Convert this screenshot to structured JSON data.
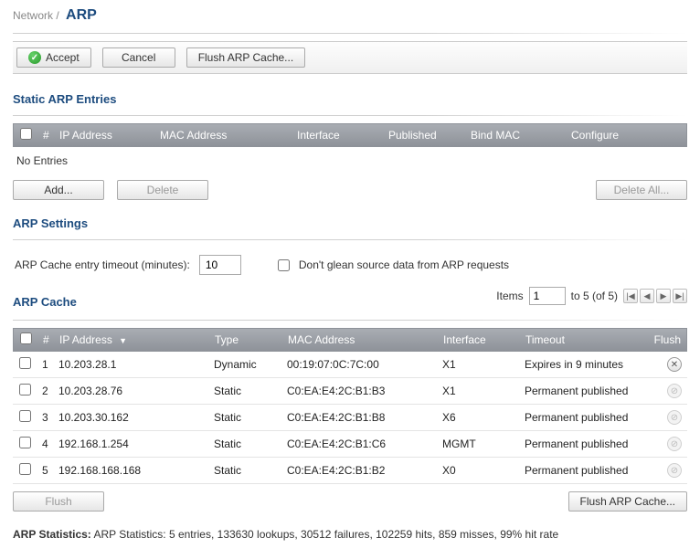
{
  "breadcrumb": {
    "parent": "Network",
    "separator": "/",
    "current": "ARP"
  },
  "action_bar": {
    "accept": "Accept",
    "cancel": "Cancel",
    "flush": "Flush ARP Cache..."
  },
  "static_entries": {
    "heading": "Static ARP Entries",
    "columns": {
      "num": "#",
      "ip": "IP Address",
      "mac": "MAC Address",
      "iface": "Interface",
      "published": "Published",
      "bind": "Bind MAC",
      "configure": "Configure"
    },
    "empty": "No Entries",
    "buttons": {
      "add": "Add...",
      "delete": "Delete",
      "delete_all": "Delete All..."
    }
  },
  "settings": {
    "heading": "ARP Settings",
    "timeout_label": "ARP Cache entry timeout (minutes):",
    "timeout_value": "10",
    "glean_label": "Don't glean source data from ARP requests",
    "glean_checked": false
  },
  "cache": {
    "heading": "ARP Cache",
    "items_label_prefix": "Items",
    "items_from": "1",
    "items_suffix": "to 5 (of 5)",
    "columns": {
      "num": "#",
      "ip": "IP Address",
      "type": "Type",
      "mac": "MAC Address",
      "iface": "Interface",
      "timeout": "Timeout",
      "flush": "Flush"
    },
    "rows": [
      {
        "num": "1",
        "ip": "10.203.28.1",
        "type": "Dynamic",
        "mac": "00:19:07:0C:7C:00",
        "iface": "X1",
        "timeout": "Expires in 9 minutes",
        "flushable": true
      },
      {
        "num": "2",
        "ip": "10.203.28.76",
        "type": "Static",
        "mac": "C0:EA:E4:2C:B1:B3",
        "iface": "X1",
        "timeout": "Permanent published",
        "flushable": false
      },
      {
        "num": "3",
        "ip": "10.203.30.162",
        "type": "Static",
        "mac": "C0:EA:E4:2C:B1:B8",
        "iface": "X6",
        "timeout": "Permanent published",
        "flushable": false
      },
      {
        "num": "4",
        "ip": "192.168.1.254",
        "type": "Static",
        "mac": "C0:EA:E4:2C:B1:C6",
        "iface": "MGMT",
        "timeout": "Permanent published",
        "flushable": false
      },
      {
        "num": "5",
        "ip": "192.168.168.168",
        "type": "Static",
        "mac": "C0:EA:E4:2C:B1:B2",
        "iface": "X0",
        "timeout": "Permanent published",
        "flushable": false
      }
    ],
    "buttons": {
      "flush": "Flush",
      "flush_all": "Flush ARP Cache..."
    }
  },
  "stats": {
    "label": "ARP Statistics:",
    "text": "ARP Statistics: 5 entries, 133630 lookups, 30512 failures, 102259 hits, 859 misses, 99% hit rate"
  },
  "colors": {
    "heading": "#1d4c7f",
    "header_bar_top": "#a9adb3",
    "header_bar_bottom": "#8e9299",
    "row_border": "#e4e4e4",
    "muted_text": "#888888"
  }
}
